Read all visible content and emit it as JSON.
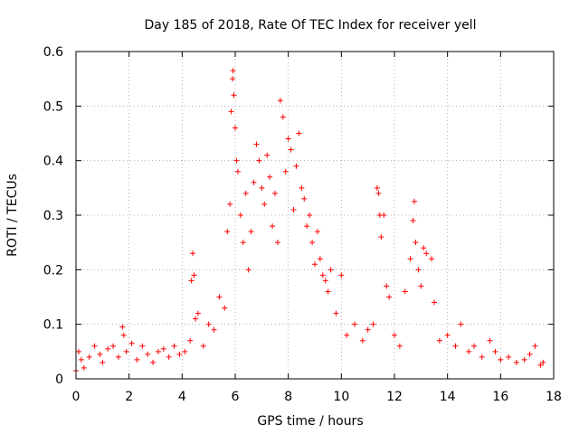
{
  "chart_data": {
    "type": "scatter",
    "title": "Day 185 of 2018, Rate Of TEC Index for receiver yell",
    "xlabel": "GPS time / hours",
    "ylabel": "ROTI / TECUs",
    "xlim": [
      0,
      18
    ],
    "ylim": [
      0,
      0.6
    ],
    "xticks": [
      0,
      2,
      4,
      6,
      8,
      10,
      12,
      14,
      16,
      18
    ],
    "xtick_labels": [
      "0",
      "2",
      "4",
      "6",
      "8",
      "10",
      "12",
      "14",
      "16",
      "18"
    ],
    "yticks": [
      0,
      0.1,
      0.2,
      0.3,
      0.4,
      0.5,
      0.6
    ],
    "ytick_labels": [
      "0",
      "0.1",
      "0.2",
      "0.3",
      "0.4",
      "0.5",
      "0.6"
    ],
    "grid": true,
    "marker": "+",
    "color": "#ff0000",
    "series": [
      {
        "name": "ROTI",
        "points": [
          [
            0.0,
            0.015
          ],
          [
            0.1,
            0.05
          ],
          [
            0.2,
            0.035
          ],
          [
            0.3,
            0.02
          ],
          [
            0.5,
            0.04
          ],
          [
            0.7,
            0.06
          ],
          [
            0.9,
            0.045
          ],
          [
            1.0,
            0.03
          ],
          [
            1.2,
            0.055
          ],
          [
            1.4,
            0.06
          ],
          [
            1.6,
            0.04
          ],
          [
            1.75,
            0.095
          ],
          [
            1.8,
            0.08
          ],
          [
            1.9,
            0.05
          ],
          [
            2.1,
            0.065
          ],
          [
            2.3,
            0.035
          ],
          [
            2.5,
            0.06
          ],
          [
            2.7,
            0.045
          ],
          [
            2.9,
            0.03
          ],
          [
            3.1,
            0.05
          ],
          [
            3.3,
            0.055
          ],
          [
            3.5,
            0.04
          ],
          [
            3.7,
            0.06
          ],
          [
            3.9,
            0.045
          ],
          [
            4.1,
            0.05
          ],
          [
            4.3,
            0.07
          ],
          [
            4.35,
            0.18
          ],
          [
            4.4,
            0.23
          ],
          [
            4.45,
            0.19
          ],
          [
            4.5,
            0.11
          ],
          [
            4.6,
            0.12
          ],
          [
            4.8,
            0.06
          ],
          [
            5.0,
            0.1
          ],
          [
            5.2,
            0.09
          ],
          [
            5.4,
            0.15
          ],
          [
            5.6,
            0.13
          ],
          [
            5.7,
            0.27
          ],
          [
            5.8,
            0.32
          ],
          [
            5.85,
            0.49
          ],
          [
            5.9,
            0.55
          ],
          [
            5.92,
            0.565
          ],
          [
            5.95,
            0.52
          ],
          [
            6.0,
            0.46
          ],
          [
            6.05,
            0.4
          ],
          [
            6.1,
            0.38
          ],
          [
            6.2,
            0.3
          ],
          [
            6.3,
            0.25
          ],
          [
            6.4,
            0.34
          ],
          [
            6.5,
            0.2
          ],
          [
            6.6,
            0.27
          ],
          [
            6.7,
            0.36
          ],
          [
            6.8,
            0.43
          ],
          [
            6.9,
            0.4
          ],
          [
            7.0,
            0.35
          ],
          [
            7.1,
            0.32
          ],
          [
            7.2,
            0.41
          ],
          [
            7.3,
            0.37
          ],
          [
            7.4,
            0.28
          ],
          [
            7.5,
            0.34
          ],
          [
            7.6,
            0.25
          ],
          [
            7.7,
            0.51
          ],
          [
            7.8,
            0.48
          ],
          [
            7.9,
            0.38
          ],
          [
            8.0,
            0.44
          ],
          [
            8.1,
            0.42
          ],
          [
            8.2,
            0.31
          ],
          [
            8.3,
            0.39
          ],
          [
            8.4,
            0.45
          ],
          [
            8.5,
            0.35
          ],
          [
            8.6,
            0.33
          ],
          [
            8.7,
            0.28
          ],
          [
            8.8,
            0.3
          ],
          [
            8.9,
            0.25
          ],
          [
            9.0,
            0.21
          ],
          [
            9.1,
            0.27
          ],
          [
            9.2,
            0.22
          ],
          [
            9.3,
            0.19
          ],
          [
            9.4,
            0.18
          ],
          [
            9.5,
            0.16
          ],
          [
            9.6,
            0.2
          ],
          [
            9.8,
            0.12
          ],
          [
            10.0,
            0.19
          ],
          [
            10.2,
            0.08
          ],
          [
            10.5,
            0.1
          ],
          [
            10.8,
            0.07
          ],
          [
            11.0,
            0.09
          ],
          [
            11.2,
            0.1
          ],
          [
            11.35,
            0.35
          ],
          [
            11.4,
            0.34
          ],
          [
            11.45,
            0.3
          ],
          [
            11.5,
            0.26
          ],
          [
            11.6,
            0.3
          ],
          [
            11.7,
            0.17
          ],
          [
            11.8,
            0.15
          ],
          [
            12.0,
            0.08
          ],
          [
            12.2,
            0.06
          ],
          [
            12.4,
            0.16
          ],
          [
            12.6,
            0.22
          ],
          [
            12.7,
            0.29
          ],
          [
            12.75,
            0.325
          ],
          [
            12.8,
            0.25
          ],
          [
            12.9,
            0.2
          ],
          [
            13.0,
            0.17
          ],
          [
            13.1,
            0.24
          ],
          [
            13.2,
            0.23
          ],
          [
            13.4,
            0.22
          ],
          [
            13.5,
            0.14
          ],
          [
            13.7,
            0.07
          ],
          [
            14.0,
            0.08
          ],
          [
            14.3,
            0.06
          ],
          [
            14.5,
            0.1
          ],
          [
            14.8,
            0.05
          ],
          [
            15.0,
            0.06
          ],
          [
            15.3,
            0.04
          ],
          [
            15.6,
            0.07
          ],
          [
            15.8,
            0.05
          ],
          [
            16.0,
            0.035
          ],
          [
            16.3,
            0.04
          ],
          [
            16.6,
            0.03
          ],
          [
            16.9,
            0.035
          ],
          [
            17.1,
            0.045
          ],
          [
            17.3,
            0.06
          ],
          [
            17.5,
            0.025
          ],
          [
            17.6,
            0.03
          ]
        ]
      }
    ]
  }
}
